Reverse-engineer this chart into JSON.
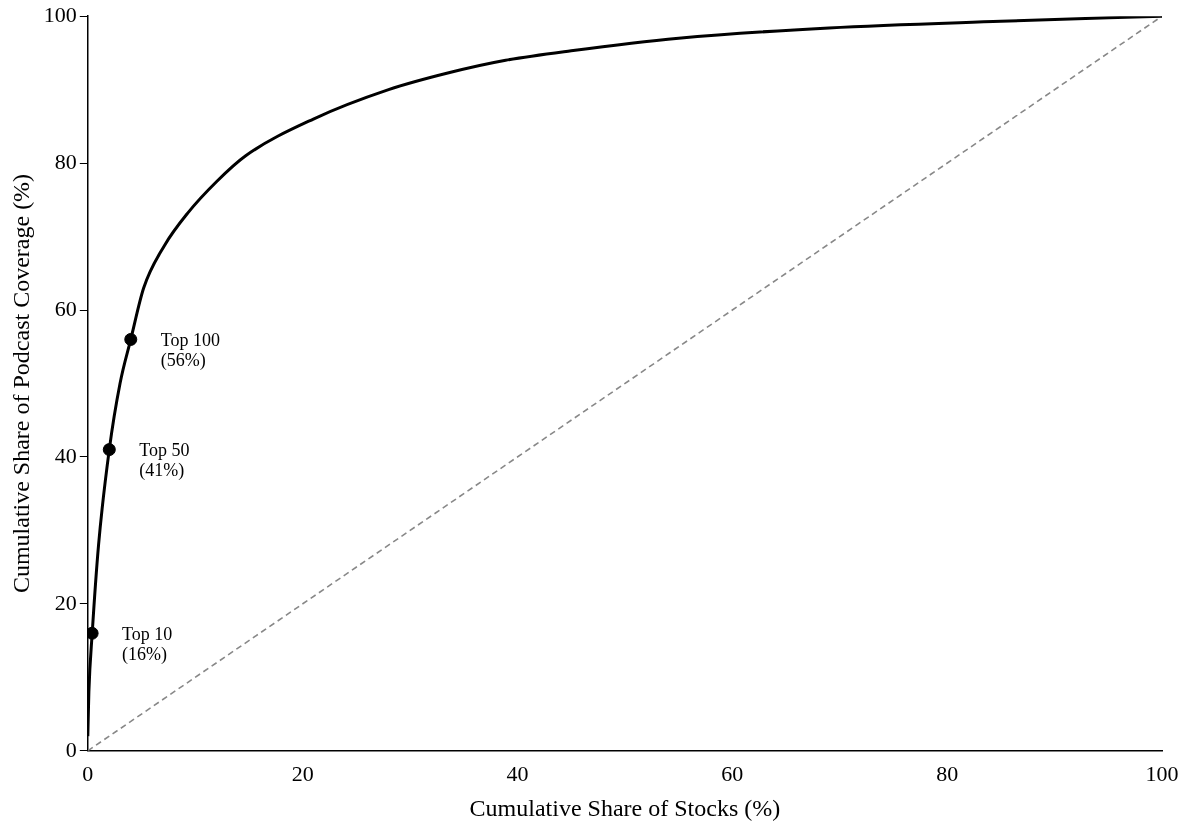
{
  "chart_data": {
    "type": "line",
    "xlabel": "Cumulative Share of Stocks (%)",
    "ylabel": "Cumulative Share of Podcast Coverage (%)",
    "xlim": [
      0,
      100
    ],
    "xticks": [
      0,
      20,
      40,
      60,
      80,
      100
    ],
    "ylim": [
      0,
      100
    ],
    "yticks": [
      0,
      20,
      40,
      60,
      80,
      100
    ],
    "grid": false,
    "legend": false,
    "series": [
      {
        "color": "#000000",
        "marker": "none",
        "line_style": "solid",
        "x": [
          0,
          0.1,
          0.41,
          1,
          2,
          3,
          4,
          5.2,
          7.1,
          9.3,
          12,
          14.7,
          21,
          28,
          33.6,
          38.9,
          45,
          55,
          69,
          85,
          100
        ],
        "values": [
          2,
          8,
          16,
          28,
          41,
          50,
          56,
          63,
          68.7,
          73.2,
          77.5,
          81,
          86,
          90,
          92.3,
          94,
          95.3,
          97,
          98.4,
          99.3,
          100
        ]
      },
      {
        "type": "line",
        "color": "#888888",
        "marker": "none",
        "line_style": "dashed",
        "x": [
          0,
          100
        ],
        "values": [
          0,
          100
        ]
      },
      {
        "type": "scatter",
        "color": "#000000",
        "marker": "circle",
        "x": [
          0.4,
          2,
          4
        ],
        "values": [
          16,
          41,
          56
        ]
      }
    ],
    "annotations": [
      {
        "text": "Top 10\n(16%)",
        "x": 0.4,
        "y": 16
      },
      {
        "text": "Top 50\n(41%)",
        "x": 2,
        "y": 41
      },
      {
        "text": "Top 100\n(56%)",
        "x": 4,
        "y": 56
      }
    ]
  }
}
